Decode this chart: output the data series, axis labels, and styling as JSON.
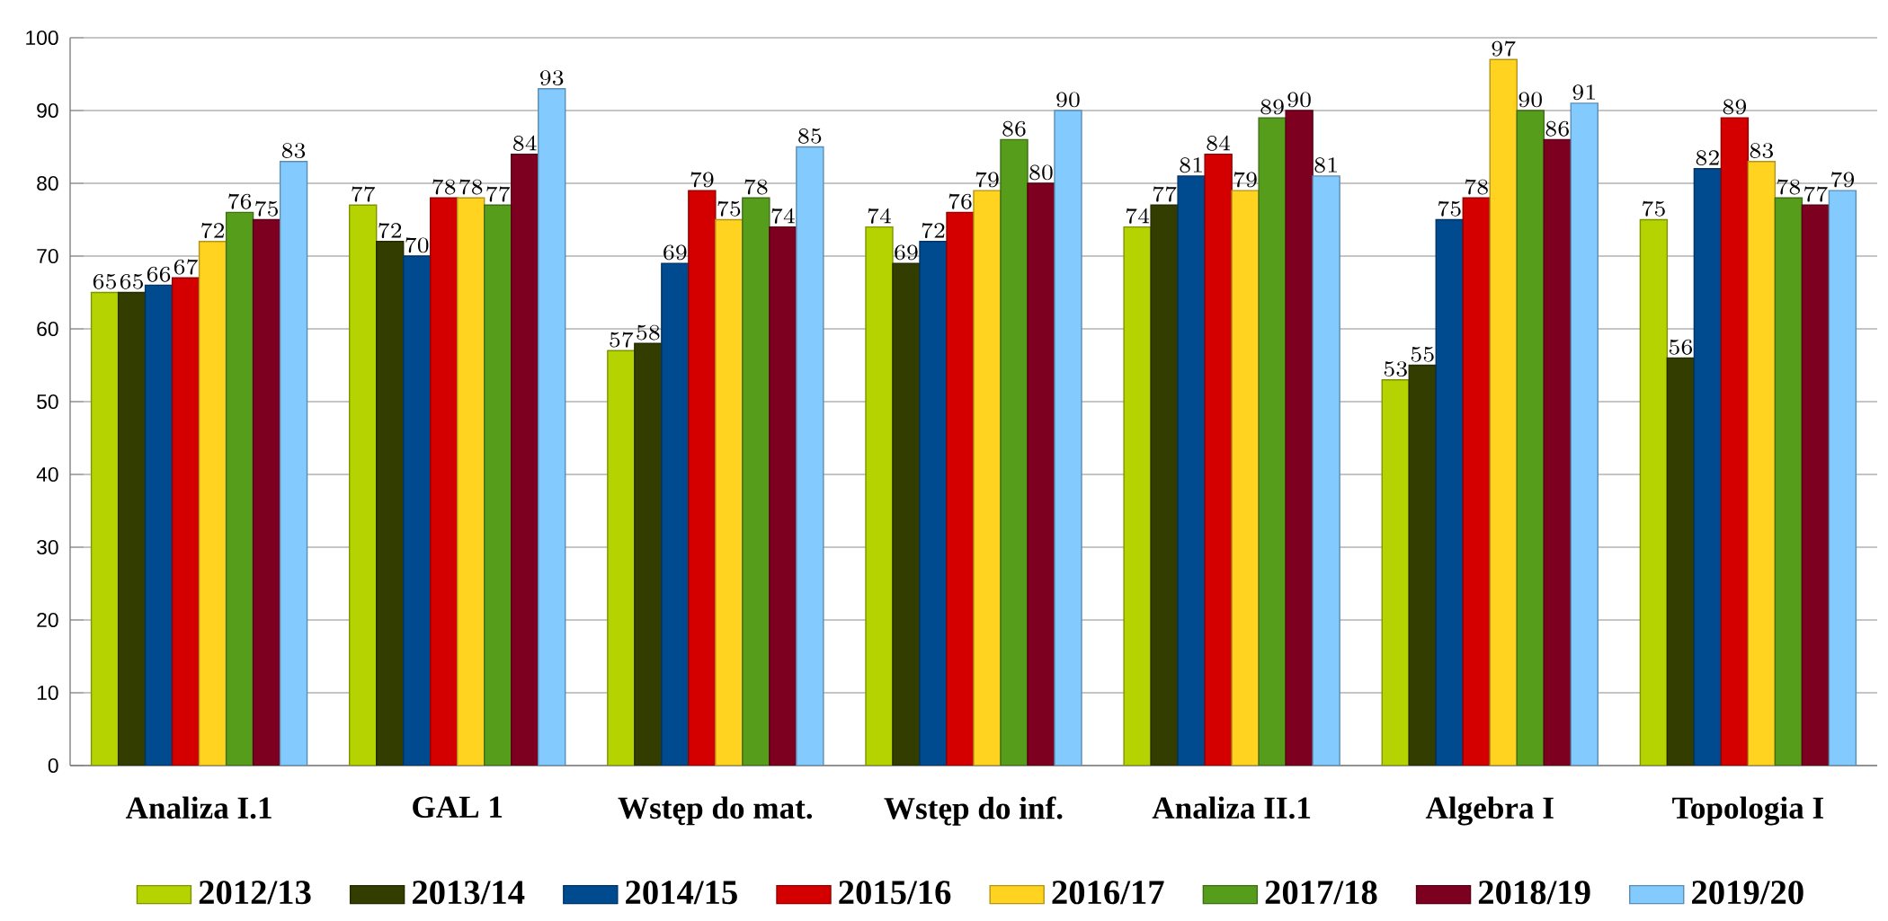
{
  "chart_data": {
    "type": "bar",
    "categories": [
      "Analiza I.1",
      "GAL 1",
      "Wstęp do mat.",
      "Wstęp do inf.",
      "Analiza II.1",
      "Algebra I",
      "Topologia I"
    ],
    "series": [
      {
        "name": "2012/13",
        "color": "#b5d300",
        "values": [
          65,
          77,
          57,
          74,
          74,
          53,
          75
        ]
      },
      {
        "name": "2013/14",
        "color": "#333d00",
        "values": [
          65,
          72,
          58,
          69,
          77,
          55,
          56
        ]
      },
      {
        "name": "2014/15",
        "color": "#004a8f",
        "values": [
          66,
          70,
          69,
          72,
          81,
          75,
          82
        ]
      },
      {
        "name": "2015/16",
        "color": "#d40000",
        "values": [
          67,
          78,
          79,
          76,
          84,
          78,
          89
        ]
      },
      {
        "name": "2016/17",
        "color": "#ffd320",
        "values": [
          72,
          78,
          75,
          79,
          79,
          97,
          83
        ]
      },
      {
        "name": "2017/18",
        "color": "#579d1c",
        "values": [
          76,
          77,
          78,
          86,
          89,
          90,
          78
        ]
      },
      {
        "name": "2018/19",
        "color": "#7e0021",
        "values": [
          75,
          84,
          74,
          80,
          90,
          86,
          77
        ]
      },
      {
        "name": "2019/20",
        "color": "#83caff",
        "values": [
          83,
          93,
          85,
          90,
          81,
          91,
          79
        ]
      }
    ],
    "ylim": [
      0,
      100
    ],
    "yticks": [
      0,
      10,
      20,
      30,
      40,
      50,
      60,
      70,
      80,
      90,
      100
    ],
    "grid": "y",
    "legend": "bottom",
    "data_labels": true
  }
}
